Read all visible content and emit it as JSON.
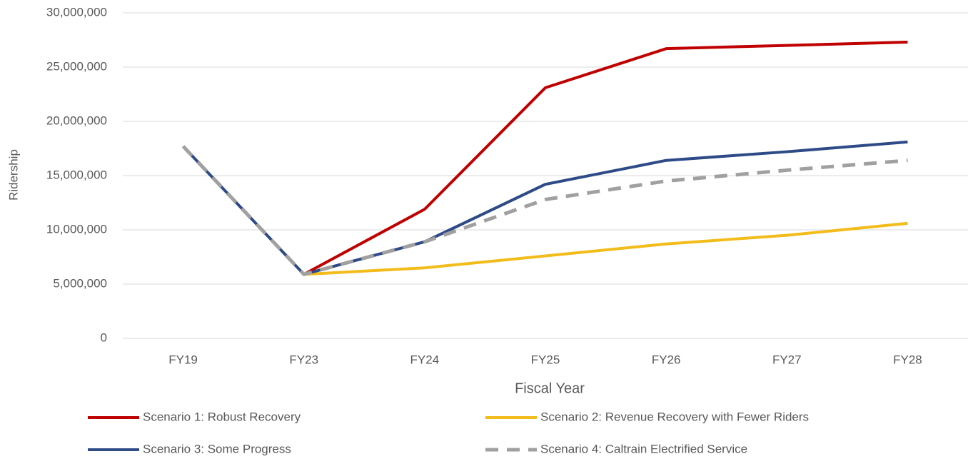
{
  "chart_data": {
    "type": "line",
    "x_label": "Fiscal Year",
    "y_label": "Ridership",
    "categories": [
      "FY19",
      "FY23",
      "FY24",
      "FY25",
      "FY26",
      "FY27",
      "FY28"
    ],
    "series": [
      {
        "name": "Scenario 1: Robust Recovery",
        "color": "#c00000",
        "dashed": false,
        "values": [
          null,
          5900000,
          11900000,
          23100000,
          26700000,
          27000000,
          27300000
        ]
      },
      {
        "name": "Scenario 2: Revenue Recovery with Fewer Riders",
        "color": "#f2bc1b",
        "dashed": false,
        "values": [
          null,
          5900000,
          6500000,
          7600000,
          8700000,
          9500000,
          10600000
        ]
      },
      {
        "name": "Scenario 3: Some Progress",
        "color": "#2e4a87",
        "dashed": false,
        "values": [
          17700000,
          5900000,
          8900000,
          14200000,
          16400000,
          17200000,
          18100000
        ]
      },
      {
        "name": "Scenario 4: Caltrain Electrified Service",
        "color": "#a0a0a0",
        "dashed": true,
        "values": [
          17700000,
          5900000,
          8900000,
          12800000,
          14500000,
          15500000,
          16400000
        ]
      }
    ],
    "ylim": [
      0,
      30000000
    ],
    "yticks": [
      0,
      {
        "value": 5000000,
        "label": "5,000,000"
      },
      {
        "value": 10000000,
        "label": "10,000,000"
      },
      {
        "value": 15000000,
        "label": "15,000,000"
      },
      {
        "value": 20000000,
        "label": "20,000,000"
      },
      {
        "value": 25000000,
        "label": "25,000,000"
      },
      {
        "value": 30000000,
        "label": "30,000,000"
      }
    ],
    "grid": true
  }
}
